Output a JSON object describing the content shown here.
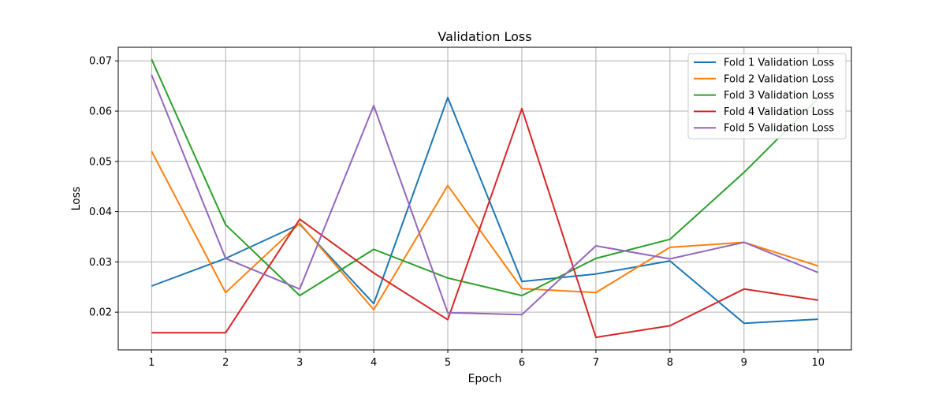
{
  "chart_data": {
    "type": "line",
    "title": "Validation Loss",
    "xlabel": "Epoch",
    "ylabel": "Loss",
    "x": [
      1,
      2,
      3,
      4,
      5,
      6,
      7,
      8,
      9,
      10
    ],
    "xlim": [
      0.55,
      10.45
    ],
    "ylim": [
      0.0125,
      0.0727
    ],
    "yticks": [
      0.02,
      0.03,
      0.04,
      0.05,
      0.06,
      0.07
    ],
    "ytick_labels": [
      "0.02",
      "0.03",
      "0.04",
      "0.05",
      "0.06",
      "0.07"
    ],
    "xtick_labels": [
      "1",
      "2",
      "3",
      "4",
      "5",
      "6",
      "7",
      "8",
      "9",
      "10"
    ],
    "grid": true,
    "legend_position": "top-right",
    "series": [
      {
        "name": "Fold 1 Validation Loss",
        "color": "#1f77b4",
        "values": [
          0.0252,
          0.0307,
          0.0375,
          0.0217,
          0.0627,
          0.0261,
          0.0276,
          0.0302,
          0.0178,
          0.0186
        ]
      },
      {
        "name": "Fold 2 Validation Loss",
        "color": "#ff7f0e",
        "values": [
          0.052,
          0.0239,
          0.0377,
          0.0205,
          0.0452,
          0.0247,
          0.0239,
          0.0329,
          0.0339,
          0.0292
        ]
      },
      {
        "name": "Fold 3 Validation Loss",
        "color": "#2ca02c",
        "values": [
          0.0703,
          0.0374,
          0.0233,
          0.0325,
          0.0268,
          0.0233,
          0.0307,
          0.0345,
          0.0478,
          0.0625
        ]
      },
      {
        "name": "Fold 4 Validation Loss",
        "color": "#d62728",
        "values": [
          0.0159,
          0.0159,
          0.0385,
          0.0278,
          0.0185,
          0.0605,
          0.015,
          0.0173,
          0.0246,
          0.0224
        ]
      },
      {
        "name": "Fold 5 Validation Loss",
        "color": "#9467bd",
        "values": [
          0.0672,
          0.0307,
          0.0246,
          0.0611,
          0.0199,
          0.0195,
          0.0332,
          0.0306,
          0.0339,
          0.0279
        ]
      }
    ]
  }
}
